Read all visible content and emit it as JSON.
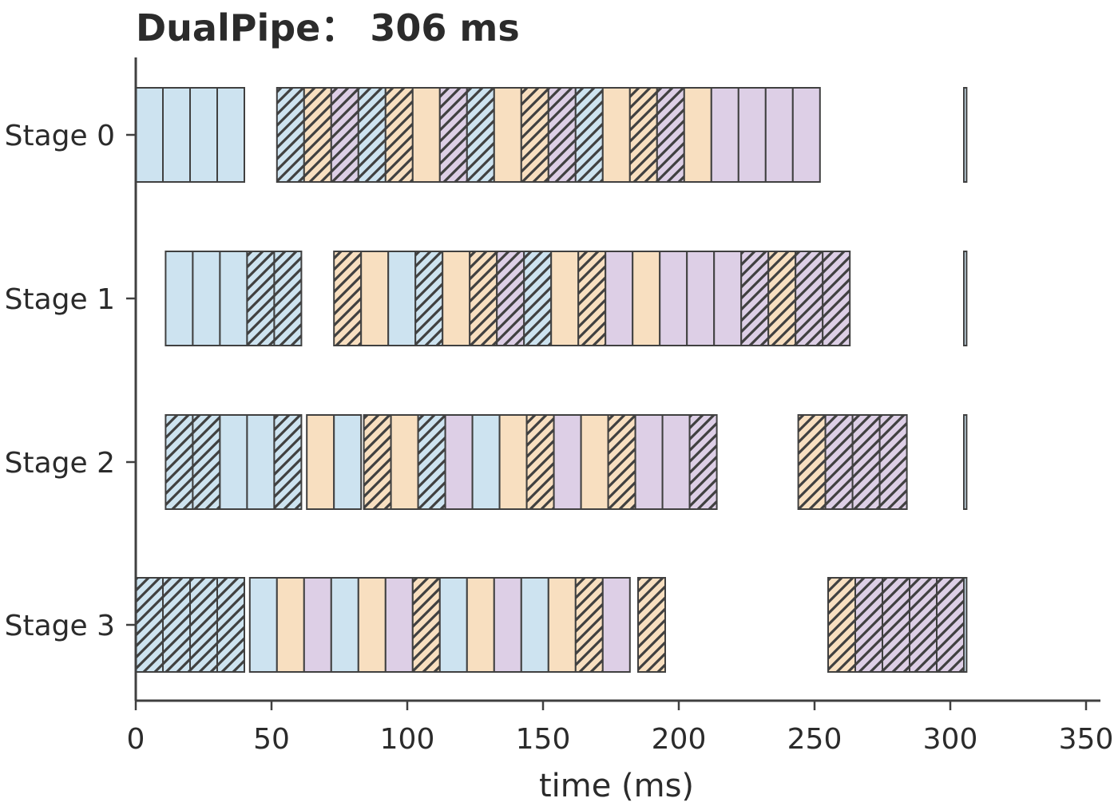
{
  "chart_data": {
    "type": "gantt",
    "title": "DualPipe：  306 ms",
    "xlabel": "time (ms)",
    "ylabel": "",
    "xlim": [
      0,
      355
    ],
    "xticks": [
      0,
      50,
      100,
      150,
      200,
      250,
      300,
      350
    ],
    "stages": [
      "Stage 0",
      "Stage 1",
      "Stage 2",
      "Stage 3"
    ],
    "grid": false,
    "colors": {
      "blue": "#cde3f0",
      "orange": "#f8dfc0",
      "purple": "#ddcfe6",
      "edge": "#404040",
      "hatch": "#404040"
    },
    "blocks": [
      {
        "stage": 0,
        "start": 0,
        "end": 10,
        "color": "blue",
        "hatched": false
      },
      {
        "stage": 0,
        "start": 10,
        "end": 20,
        "color": "blue",
        "hatched": false
      },
      {
        "stage": 0,
        "start": 20,
        "end": 30,
        "color": "blue",
        "hatched": false
      },
      {
        "stage": 0,
        "start": 30,
        "end": 40,
        "color": "blue",
        "hatched": false
      },
      {
        "stage": 0,
        "start": 52,
        "end": 62,
        "color": "blue",
        "hatched": true
      },
      {
        "stage": 0,
        "start": 62,
        "end": 72,
        "color": "orange",
        "hatched": true
      },
      {
        "stage": 0,
        "start": 72,
        "end": 82,
        "color": "purple",
        "hatched": true
      },
      {
        "stage": 0,
        "start": 82,
        "end": 92,
        "color": "blue",
        "hatched": true
      },
      {
        "stage": 0,
        "start": 92,
        "end": 102,
        "color": "orange",
        "hatched": true
      },
      {
        "stage": 0,
        "start": 102,
        "end": 112,
        "color": "orange",
        "hatched": false
      },
      {
        "stage": 0,
        "start": 112,
        "end": 122,
        "color": "purple",
        "hatched": true
      },
      {
        "stage": 0,
        "start": 122,
        "end": 132,
        "color": "blue",
        "hatched": true
      },
      {
        "stage": 0,
        "start": 132,
        "end": 142,
        "color": "orange",
        "hatched": false
      },
      {
        "stage": 0,
        "start": 142,
        "end": 152,
        "color": "orange",
        "hatched": true
      },
      {
        "stage": 0,
        "start": 152,
        "end": 162,
        "color": "purple",
        "hatched": true
      },
      {
        "stage": 0,
        "start": 162,
        "end": 172,
        "color": "blue",
        "hatched": true
      },
      {
        "stage": 0,
        "start": 172,
        "end": 182,
        "color": "orange",
        "hatched": false
      },
      {
        "stage": 0,
        "start": 182,
        "end": 192,
        "color": "orange",
        "hatched": true
      },
      {
        "stage": 0,
        "start": 192,
        "end": 202,
        "color": "purple",
        "hatched": true
      },
      {
        "stage": 0,
        "start": 202,
        "end": 212,
        "color": "orange",
        "hatched": false
      },
      {
        "stage": 0,
        "start": 212,
        "end": 222,
        "color": "purple",
        "hatched": false
      },
      {
        "stage": 0,
        "start": 222,
        "end": 232,
        "color": "purple",
        "hatched": false
      },
      {
        "stage": 0,
        "start": 232,
        "end": 242,
        "color": "purple",
        "hatched": false
      },
      {
        "stage": 0,
        "start": 242,
        "end": 252,
        "color": "purple",
        "hatched": false
      },
      {
        "stage": 0,
        "start": 305,
        "end": 306,
        "color": "blue",
        "hatched": false
      },
      {
        "stage": 1,
        "start": 11,
        "end": 21,
        "color": "blue",
        "hatched": false
      },
      {
        "stage": 1,
        "start": 21,
        "end": 31,
        "color": "blue",
        "hatched": false
      },
      {
        "stage": 1,
        "start": 31,
        "end": 41,
        "color": "blue",
        "hatched": false
      },
      {
        "stage": 1,
        "start": 41,
        "end": 51,
        "color": "blue",
        "hatched": true
      },
      {
        "stage": 1,
        "start": 51,
        "end": 61,
        "color": "blue",
        "hatched": true
      },
      {
        "stage": 1,
        "start": 73,
        "end": 83,
        "color": "orange",
        "hatched": true
      },
      {
        "stage": 1,
        "start": 83,
        "end": 93,
        "color": "orange",
        "hatched": false
      },
      {
        "stage": 1,
        "start": 93,
        "end": 103,
        "color": "blue",
        "hatched": false
      },
      {
        "stage": 1,
        "start": 103,
        "end": 113,
        "color": "blue",
        "hatched": true
      },
      {
        "stage": 1,
        "start": 113,
        "end": 123,
        "color": "orange",
        "hatched": false
      },
      {
        "stage": 1,
        "start": 123,
        "end": 133,
        "color": "orange",
        "hatched": true
      },
      {
        "stage": 1,
        "start": 133,
        "end": 143,
        "color": "purple",
        "hatched": true
      },
      {
        "stage": 1,
        "start": 143,
        "end": 153,
        "color": "blue",
        "hatched": true
      },
      {
        "stage": 1,
        "start": 153,
        "end": 163,
        "color": "orange",
        "hatched": false
      },
      {
        "stage": 1,
        "start": 163,
        "end": 173,
        "color": "orange",
        "hatched": true
      },
      {
        "stage": 1,
        "start": 173,
        "end": 183,
        "color": "purple",
        "hatched": false
      },
      {
        "stage": 1,
        "start": 183,
        "end": 193,
        "color": "orange",
        "hatched": false
      },
      {
        "stage": 1,
        "start": 193,
        "end": 203,
        "color": "purple",
        "hatched": false
      },
      {
        "stage": 1,
        "start": 203,
        "end": 213,
        "color": "purple",
        "hatched": false
      },
      {
        "stage": 1,
        "start": 213,
        "end": 223,
        "color": "purple",
        "hatched": false
      },
      {
        "stage": 1,
        "start": 223,
        "end": 233,
        "color": "purple",
        "hatched": true
      },
      {
        "stage": 1,
        "start": 233,
        "end": 243,
        "color": "orange",
        "hatched": true
      },
      {
        "stage": 1,
        "start": 243,
        "end": 253,
        "color": "purple",
        "hatched": true
      },
      {
        "stage": 1,
        "start": 253,
        "end": 263,
        "color": "purple",
        "hatched": true
      },
      {
        "stage": 1,
        "start": 305,
        "end": 306,
        "color": "blue",
        "hatched": false
      },
      {
        "stage": 2,
        "start": 11,
        "end": 21,
        "color": "blue",
        "hatched": true
      },
      {
        "stage": 2,
        "start": 21,
        "end": 31,
        "color": "blue",
        "hatched": true
      },
      {
        "stage": 2,
        "start": 31,
        "end": 41,
        "color": "blue",
        "hatched": false
      },
      {
        "stage": 2,
        "start": 41,
        "end": 51,
        "color": "blue",
        "hatched": false
      },
      {
        "stage": 2,
        "start": 51,
        "end": 61,
        "color": "blue",
        "hatched": true
      },
      {
        "stage": 2,
        "start": 63,
        "end": 73,
        "color": "orange",
        "hatched": false
      },
      {
        "stage": 2,
        "start": 73,
        "end": 83,
        "color": "blue",
        "hatched": false
      },
      {
        "stage": 2,
        "start": 84,
        "end": 94,
        "color": "orange",
        "hatched": true
      },
      {
        "stage": 2,
        "start": 94,
        "end": 104,
        "color": "orange",
        "hatched": false
      },
      {
        "stage": 2,
        "start": 104,
        "end": 114,
        "color": "blue",
        "hatched": true
      },
      {
        "stage": 2,
        "start": 114,
        "end": 124,
        "color": "purple",
        "hatched": false
      },
      {
        "stage": 2,
        "start": 124,
        "end": 134,
        "color": "blue",
        "hatched": false
      },
      {
        "stage": 2,
        "start": 134,
        "end": 144,
        "color": "orange",
        "hatched": false
      },
      {
        "stage": 2,
        "start": 144,
        "end": 154,
        "color": "orange",
        "hatched": true
      },
      {
        "stage": 2,
        "start": 154,
        "end": 164,
        "color": "purple",
        "hatched": false
      },
      {
        "stage": 2,
        "start": 164,
        "end": 174,
        "color": "orange",
        "hatched": false
      },
      {
        "stage": 2,
        "start": 174,
        "end": 184,
        "color": "orange",
        "hatched": true
      },
      {
        "stage": 2,
        "start": 184,
        "end": 194,
        "color": "purple",
        "hatched": false
      },
      {
        "stage": 2,
        "start": 194,
        "end": 204,
        "color": "purple",
        "hatched": false
      },
      {
        "stage": 2,
        "start": 204,
        "end": 214,
        "color": "purple",
        "hatched": true
      },
      {
        "stage": 2,
        "start": 244,
        "end": 254,
        "color": "orange",
        "hatched": true
      },
      {
        "stage": 2,
        "start": 254,
        "end": 264,
        "color": "purple",
        "hatched": true
      },
      {
        "stage": 2,
        "start": 264,
        "end": 274,
        "color": "purple",
        "hatched": true
      },
      {
        "stage": 2,
        "start": 274,
        "end": 284,
        "color": "purple",
        "hatched": true
      },
      {
        "stage": 2,
        "start": 305,
        "end": 306,
        "color": "blue",
        "hatched": false
      },
      {
        "stage": 3,
        "start": 0,
        "end": 10,
        "color": "blue",
        "hatched": true
      },
      {
        "stage": 3,
        "start": 10,
        "end": 20,
        "color": "blue",
        "hatched": true
      },
      {
        "stage": 3,
        "start": 20,
        "end": 30,
        "color": "blue",
        "hatched": true
      },
      {
        "stage": 3,
        "start": 30,
        "end": 40,
        "color": "blue",
        "hatched": true
      },
      {
        "stage": 3,
        "start": 42,
        "end": 52,
        "color": "blue",
        "hatched": false
      },
      {
        "stage": 3,
        "start": 52,
        "end": 62,
        "color": "orange",
        "hatched": false
      },
      {
        "stage": 3,
        "start": 62,
        "end": 72,
        "color": "purple",
        "hatched": false
      },
      {
        "stage": 3,
        "start": 72,
        "end": 82,
        "color": "blue",
        "hatched": false
      },
      {
        "stage": 3,
        "start": 82,
        "end": 92,
        "color": "orange",
        "hatched": false
      },
      {
        "stage": 3,
        "start": 92,
        "end": 102,
        "color": "purple",
        "hatched": false
      },
      {
        "stage": 3,
        "start": 102,
        "end": 112,
        "color": "orange",
        "hatched": true
      },
      {
        "stage": 3,
        "start": 112,
        "end": 122,
        "color": "blue",
        "hatched": false
      },
      {
        "stage": 3,
        "start": 122,
        "end": 132,
        "color": "orange",
        "hatched": false
      },
      {
        "stage": 3,
        "start": 132,
        "end": 142,
        "color": "purple",
        "hatched": false
      },
      {
        "stage": 3,
        "start": 142,
        "end": 152,
        "color": "blue",
        "hatched": false
      },
      {
        "stage": 3,
        "start": 152,
        "end": 162,
        "color": "orange",
        "hatched": false
      },
      {
        "stage": 3,
        "start": 162,
        "end": 172,
        "color": "orange",
        "hatched": true
      },
      {
        "stage": 3,
        "start": 172,
        "end": 182,
        "color": "purple",
        "hatched": false
      },
      {
        "stage": 3,
        "start": 185,
        "end": 195,
        "color": "orange",
        "hatched": true
      },
      {
        "stage": 3,
        "start": 255,
        "end": 265,
        "color": "orange",
        "hatched": true
      },
      {
        "stage": 3,
        "start": 265,
        "end": 275,
        "color": "purple",
        "hatched": true
      },
      {
        "stage": 3,
        "start": 275,
        "end": 285,
        "color": "purple",
        "hatched": true
      },
      {
        "stage": 3,
        "start": 285,
        "end": 295,
        "color": "purple",
        "hatched": true
      },
      {
        "stage": 3,
        "start": 295,
        "end": 305,
        "color": "purple",
        "hatched": true
      },
      {
        "stage": 3,
        "start": 305,
        "end": 306,
        "color": "blue",
        "hatched": false
      }
    ]
  }
}
